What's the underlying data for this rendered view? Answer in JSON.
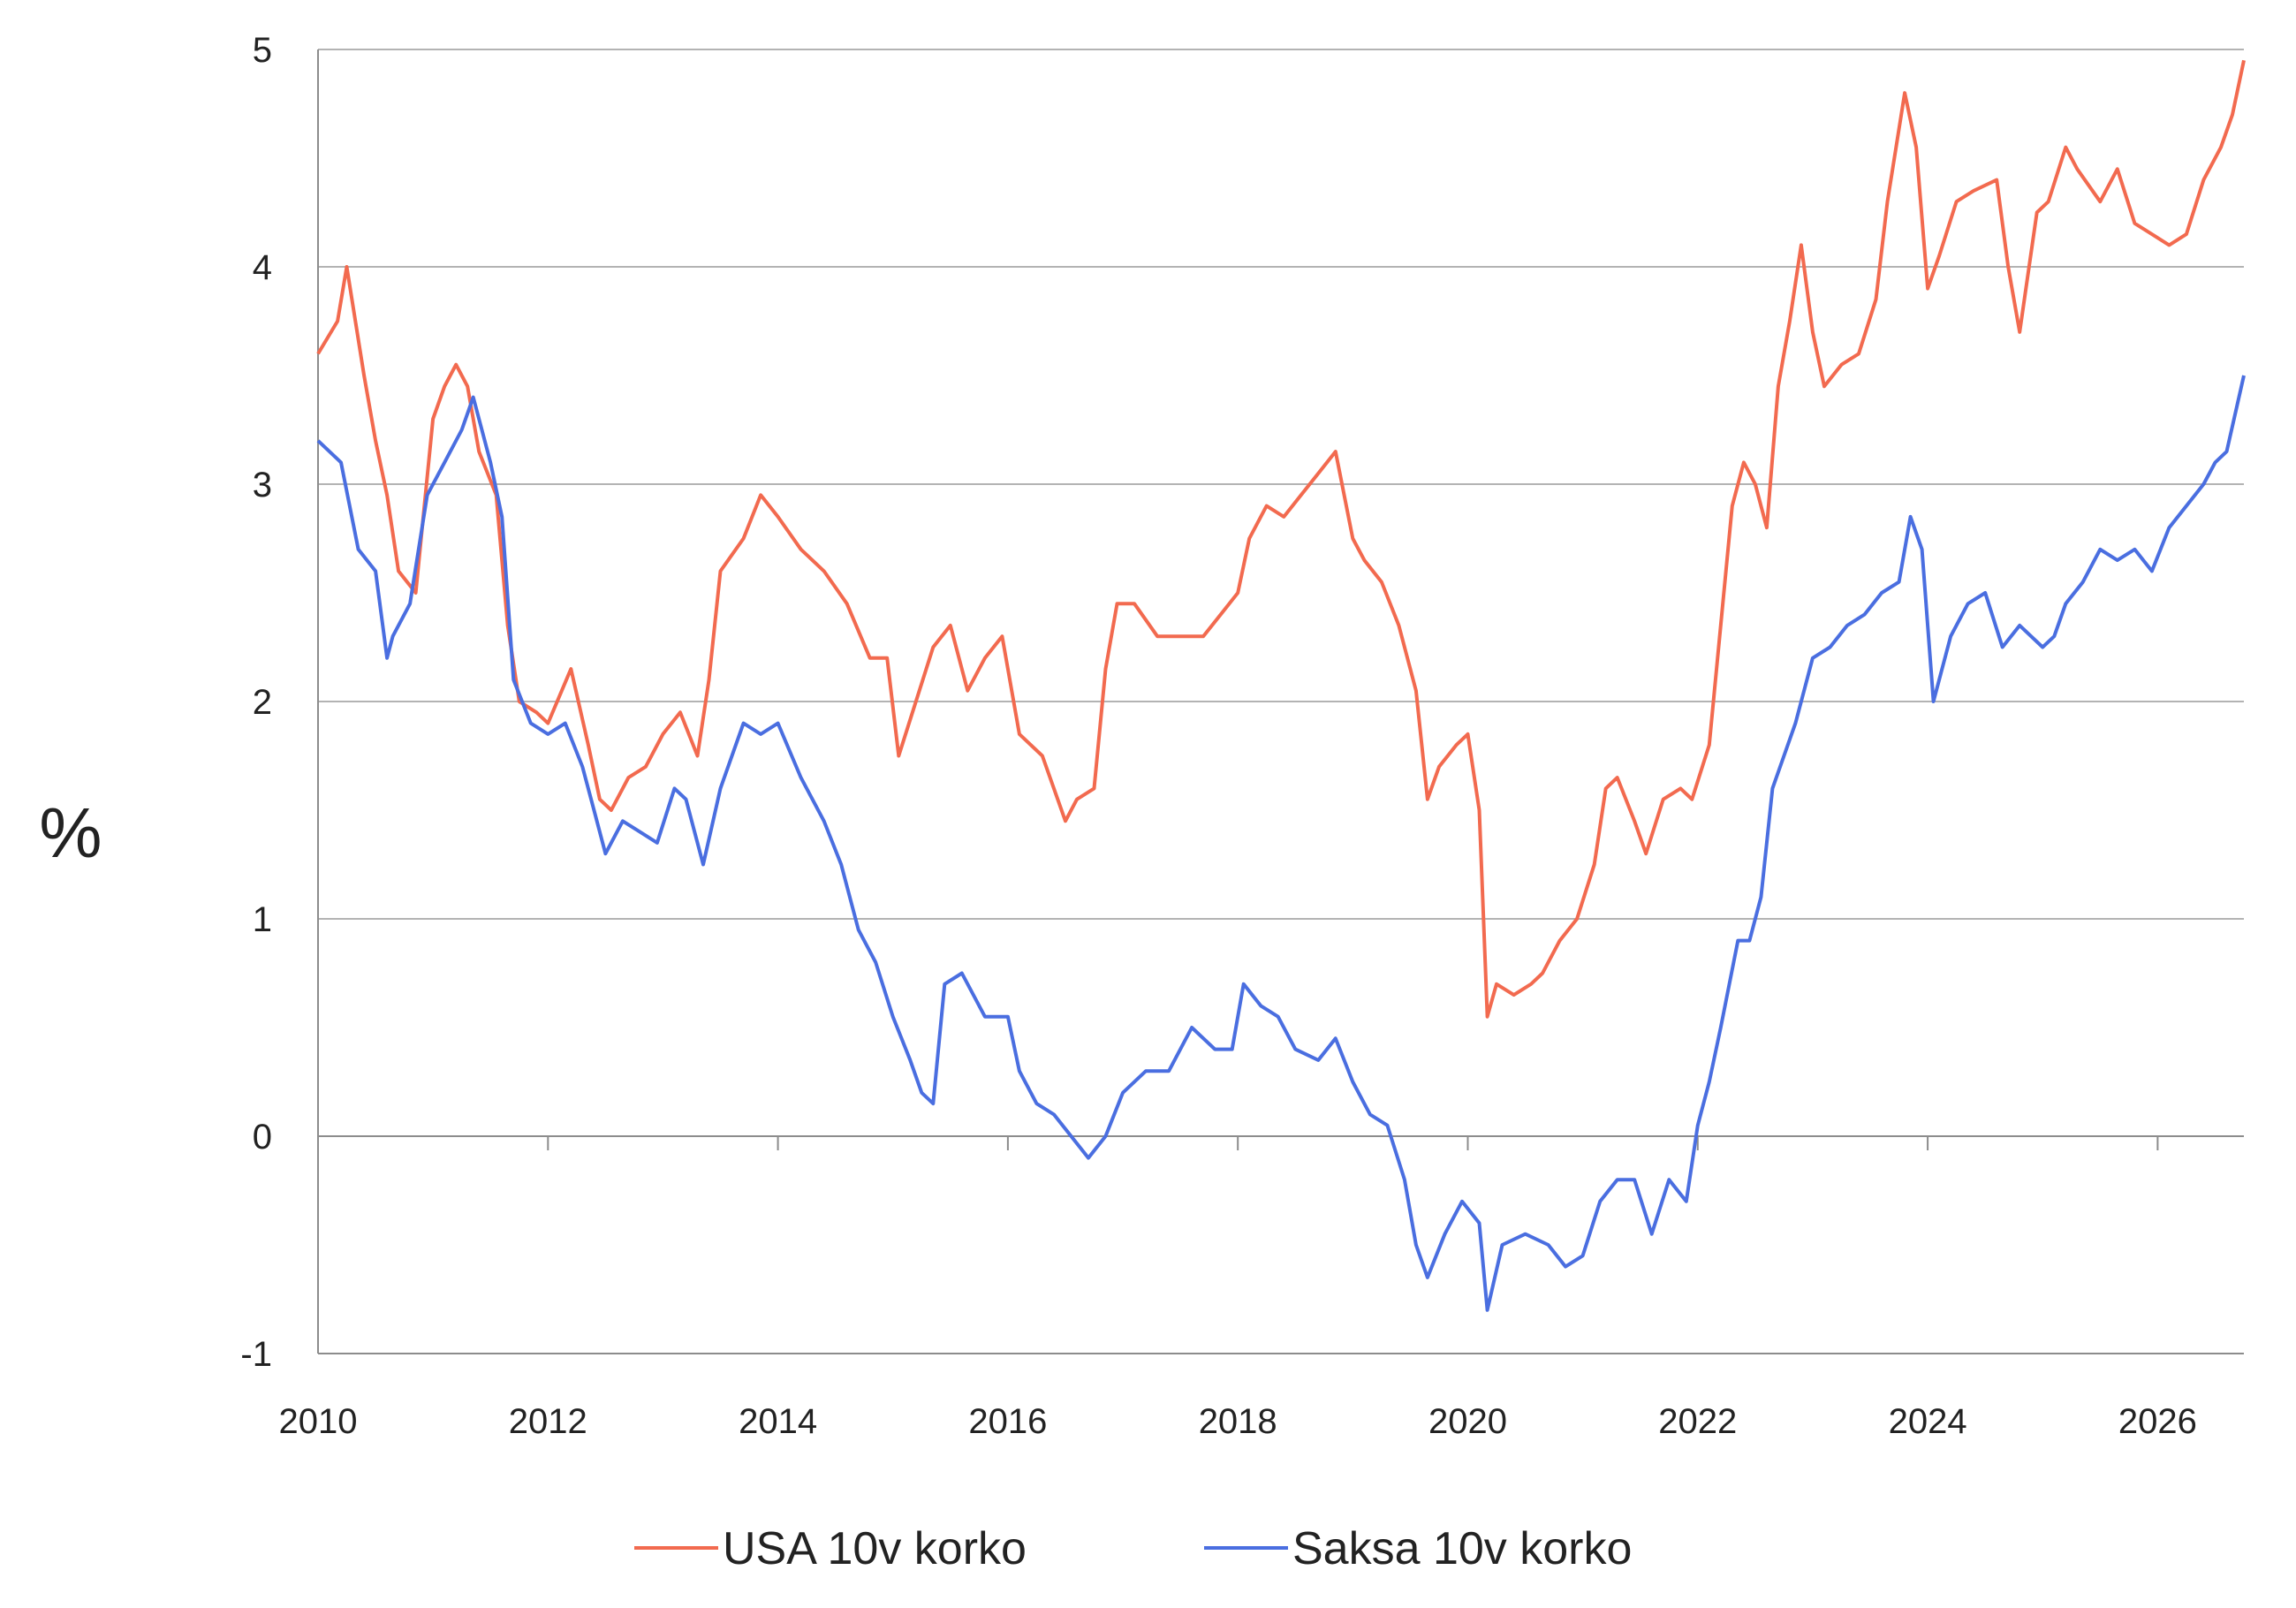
{
  "chart_data": {
    "type": "line",
    "title": "",
    "xlabel": "",
    "ylabel": "%",
    "xlim": [
      2010,
      2026.75
    ],
    "ylim": [
      -1,
      5
    ],
    "x_ticks": [
      "2010",
      "2012",
      "2014",
      "2016",
      "2018",
      "2020",
      "2022",
      "2024",
      "2026"
    ],
    "y_ticks": [
      "-1",
      "0",
      "1",
      "2",
      "3",
      "4",
      "5"
    ],
    "grid": "horizontal",
    "legend_position": "bottom",
    "series": [
      {
        "name": "USA 10v korko",
        "color": "#f26a4f",
        "x": [
          2010.0,
          2010.17,
          2010.25,
          2010.4,
          2010.5,
          2010.6,
          2010.7,
          2010.85,
          2011.0,
          2011.1,
          2011.2,
          2011.3,
          2011.4,
          2011.55,
          2011.65,
          2011.75,
          2011.9,
          2012.0,
          2012.2,
          2012.35,
          2012.45,
          2012.55,
          2012.7,
          2012.85,
          2013.0,
          2013.15,
          2013.3,
          2013.4,
          2013.5,
          2013.7,
          2013.85,
          2014.0,
          2014.2,
          2014.4,
          2014.6,
          2014.8,
          2014.95,
          2015.05,
          2015.2,
          2015.35,
          2015.5,
          2015.65,
          2015.8,
          2015.95,
          2016.1,
          2016.3,
          2016.5,
          2016.6,
          2016.75,
          2016.85,
          2016.95,
          2017.1,
          2017.3,
          2017.5,
          2017.7,
          2017.85,
          2018.0,
          2018.1,
          2018.25,
          2018.4,
          2018.55,
          2018.7,
          2018.85,
          2019.0,
          2019.1,
          2019.25,
          2019.4,
          2019.55,
          2019.65,
          2019.75,
          2019.9,
          2020.0,
          2020.1,
          2020.17,
          2020.25,
          2020.4,
          2020.55,
          2020.65,
          2020.8,
          2020.95,
          2021.1,
          2021.2,
          2021.3,
          2021.45,
          2021.55,
          2021.7,
          2021.85,
          2021.95,
          2022.1,
          2022.2,
          2022.3,
          2022.4,
          2022.5,
          2022.6,
          2022.7,
          2022.8,
          2022.9,
          2023.0,
          2023.1,
          2023.25,
          2023.4,
          2023.55,
          2023.65,
          2023.8,
          2023.9,
          2024.0,
          2024.1,
          2024.25,
          2024.4,
          2024.6,
          2024.7,
          2024.8,
          2024.95,
          2025.05,
          2025.2,
          2025.3,
          2025.5,
          2025.65,
          2025.8,
          2025.95,
          2026.1,
          2026.25,
          2026.4,
          2026.55,
          2026.65,
          2026.75
        ],
        "values": [
          3.6,
          3.75,
          4.0,
          3.5,
          3.2,
          2.95,
          2.6,
          2.5,
          3.3,
          3.45,
          3.55,
          3.45,
          3.15,
          2.95,
          2.35,
          2.0,
          1.95,
          1.9,
          2.15,
          1.8,
          1.55,
          1.5,
          1.65,
          1.7,
          1.85,
          1.95,
          1.75,
          2.1,
          2.6,
          2.75,
          2.95,
          2.85,
          2.7,
          2.6,
          2.45,
          2.2,
          2.2,
          1.75,
          2.0,
          2.25,
          2.35,
          2.05,
          2.2,
          2.3,
          1.85,
          1.75,
          1.45,
          1.55,
          1.6,
          2.15,
          2.45,
          2.45,
          2.3,
          2.3,
          2.3,
          2.4,
          2.5,
          2.75,
          2.9,
          2.85,
          2.95,
          3.05,
          3.15,
          2.75,
          2.65,
          2.55,
          2.35,
          2.05,
          1.55,
          1.7,
          1.8,
          1.85,
          1.5,
          0.55,
          0.7,
          0.65,
          0.7,
          0.75,
          0.9,
          1.0,
          1.25,
          1.6,
          1.65,
          1.45,
          1.3,
          1.55,
          1.6,
          1.55,
          1.8,
          2.35,
          2.9,
          3.1,
          3.0,
          2.8,
          3.45,
          3.75,
          4.1,
          3.7,
          3.45,
          3.55,
          3.6,
          3.85,
          4.3,
          4.8,
          4.55,
          3.9,
          4.05,
          4.3,
          4.35,
          4.4,
          4.0,
          3.7,
          4.25,
          4.3,
          4.55,
          4.45,
          4.3,
          4.45,
          4.2,
          4.15,
          4.1,
          4.15,
          4.4,
          4.55,
          4.7,
          4.95
        ],
        "marker": "none"
      },
      {
        "name": "Saksa 10v korko",
        "color": "#4a6ee0",
        "x": [
          2010.0,
          2010.2,
          2010.35,
          2010.5,
          2010.6,
          2010.65,
          2010.8,
          2010.95,
          2011.1,
          2011.25,
          2011.35,
          2011.5,
          2011.6,
          2011.7,
          2011.85,
          2012.0,
          2012.15,
          2012.3,
          2012.4,
          2012.5,
          2012.65,
          2012.8,
          2012.95,
          2013.1,
          2013.2,
          2013.35,
          2013.5,
          2013.7,
          2013.85,
          2014.0,
          2014.2,
          2014.4,
          2014.55,
          2014.7,
          2014.85,
          2015.0,
          2015.15,
          2015.25,
          2015.35,
          2015.45,
          2015.6,
          2015.8,
          2016.0,
          2016.1,
          2016.25,
          2016.4,
          2016.55,
          2016.7,
          2016.85,
          2017.0,
          2017.2,
          2017.4,
          2017.6,
          2017.8,
          2017.95,
          2018.05,
          2018.2,
          2018.35,
          2018.5,
          2018.7,
          2018.85,
          2019.0,
          2019.15,
          2019.3,
          2019.45,
          2019.55,
          2019.65,
          2019.8,
          2019.95,
          2020.1,
          2020.17,
          2020.3,
          2020.5,
          2020.7,
          2020.85,
          2021.0,
          2021.15,
          2021.3,
          2021.45,
          2021.6,
          2021.75,
          2021.9,
          2022.0,
          2022.1,
          2022.2,
          2022.35,
          2022.45,
          2022.55,
          2022.65,
          2022.75,
          2022.85,
          2023.0,
          2023.15,
          2023.3,
          2023.45,
          2023.6,
          2023.75,
          2023.85,
          2023.95,
          2024.05,
          2024.2,
          2024.35,
          2024.5,
          2024.65,
          2024.8,
          2025.0,
          2025.1,
          2025.2,
          2025.35,
          2025.5,
          2025.65,
          2025.8,
          2025.95,
          2026.1,
          2026.25,
          2026.4,
          2026.5,
          2026.6,
          2026.75
        ],
        "values": [
          3.2,
          3.1,
          2.7,
          2.6,
          2.2,
          2.3,
          2.45,
          2.95,
          3.1,
          3.25,
          3.4,
          3.1,
          2.85,
          2.1,
          1.9,
          1.85,
          1.9,
          1.7,
          1.5,
          1.3,
          1.45,
          1.4,
          1.35,
          1.6,
          1.55,
          1.25,
          1.6,
          1.9,
          1.85,
          1.9,
          1.65,
          1.45,
          1.25,
          0.95,
          0.8,
          0.55,
          0.35,
          0.2,
          0.15,
          0.7,
          0.75,
          0.55,
          0.55,
          0.3,
          0.15,
          0.1,
          0.0,
          -0.1,
          0.0,
          0.2,
          0.3,
          0.3,
          0.5,
          0.4,
          0.4,
          0.7,
          0.6,
          0.55,
          0.4,
          0.35,
          0.45,
          0.25,
          0.1,
          0.05,
          -0.2,
          -0.5,
          -0.65,
          -0.45,
          -0.3,
          -0.4,
          -0.8,
          -0.5,
          -0.45,
          -0.5,
          -0.6,
          -0.55,
          -0.3,
          -0.2,
          -0.2,
          -0.45,
          -0.2,
          -0.3,
          0.05,
          0.25,
          0.5,
          0.9,
          0.9,
          1.1,
          1.6,
          1.75,
          1.9,
          2.2,
          2.25,
          2.35,
          2.4,
          2.5,
          2.55,
          2.85,
          2.7,
          2.0,
          2.3,
          2.45,
          2.5,
          2.25,
          2.35,
          2.25,
          2.3,
          2.45,
          2.55,
          2.7,
          2.65,
          2.7,
          2.6,
          2.8,
          2.9,
          3.0,
          3.1,
          3.15,
          3.5
        ],
        "marker": "none"
      }
    ]
  }
}
